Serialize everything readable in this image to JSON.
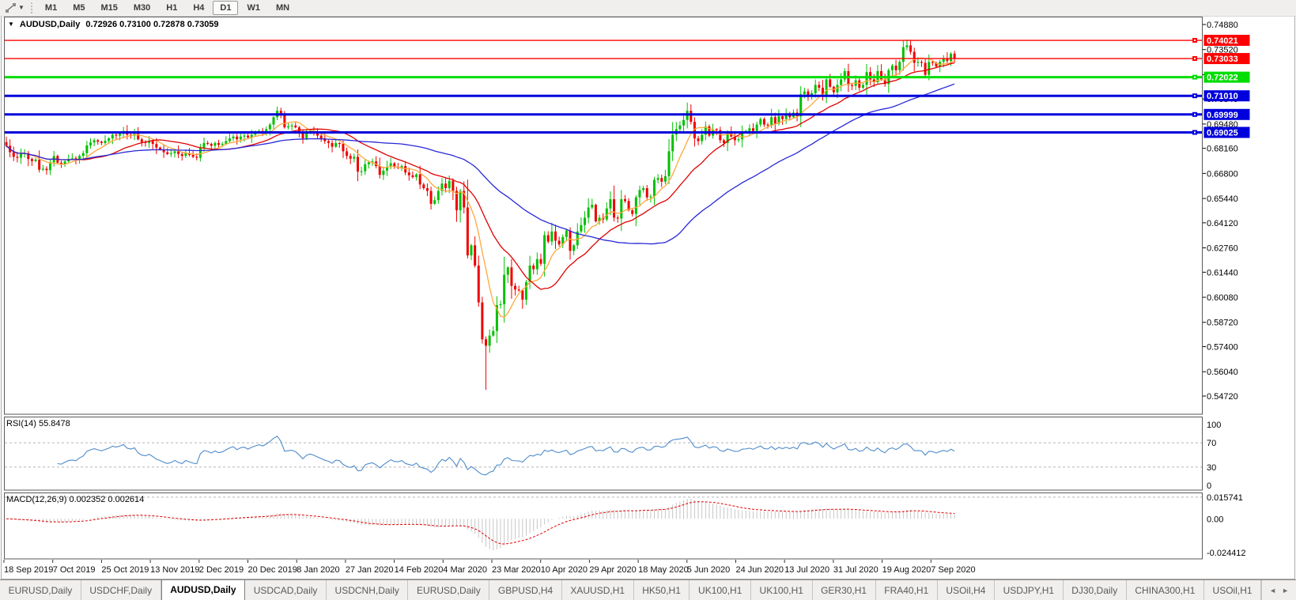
{
  "toolbar": {
    "timeframes": [
      {
        "label": "M1",
        "active": false
      },
      {
        "label": "M5",
        "active": false
      },
      {
        "label": "M15",
        "active": false
      },
      {
        "label": "M30",
        "active": false
      },
      {
        "label": "H1",
        "active": false
      },
      {
        "label": "H4",
        "active": false
      },
      {
        "label": "D1",
        "active": true
      },
      {
        "label": "W1",
        "active": false
      },
      {
        "label": "MN",
        "active": false
      }
    ]
  },
  "chart": {
    "title_symbol": "AUDUSD,Daily",
    "ohlc": "0.72926 0.73100 0.72878 0.73059"
  },
  "price_axis": {
    "ticks": [
      "0.74880",
      "0.73520",
      "0.72160",
      "0.70840",
      "0.69480",
      "0.68160",
      "0.66800",
      "0.65440",
      "0.64120",
      "0.62760",
      "0.61440",
      "0.60080",
      "0.58720",
      "0.57400",
      "0.56040",
      "0.54720"
    ]
  },
  "levels": [
    {
      "price": "0.74021",
      "color": "#FF0000",
      "width": 1.4
    },
    {
      "price": "0.73033",
      "color": "#FF0000",
      "width": 1.4
    },
    {
      "price": "0.72022",
      "color": "#00DD00",
      "width": 3
    },
    {
      "price": "0.71010",
      "color": "#0000DC",
      "width": 3
    },
    {
      "price": "0.69999",
      "color": "#0000DC",
      "width": 3
    },
    {
      "price": "0.69025",
      "color": "#0000DC",
      "width": 3
    }
  ],
  "rsi": {
    "label": "RSI(14) 55.8478",
    "axis_labels": [
      {
        "text": "100",
        "value": 100
      },
      {
        "text": "70",
        "value": 70
      },
      {
        "text": "30",
        "value": 30
      },
      {
        "text": "0",
        "value": 0
      }
    ],
    "dashed_levels": [
      70,
      30
    ],
    "line_color": "#4e8cc9"
  },
  "macd": {
    "label": "MACD(12,26,9) 0.002352 0.002614",
    "axis_labels": [
      {
        "text": "0.015741",
        "value": 0.015741,
        "dashed": true
      },
      {
        "text": "0.00",
        "value": 0,
        "dashed": false
      },
      {
        "text": "-0.024412",
        "value": -0.024412,
        "dashed": false
      }
    ],
    "histogram_color": "#c6c6c6",
    "signal_color": "#e00000"
  },
  "dates": {
    "labels": [
      "18 Sep 2019",
      "7 Oct 2019",
      "25 Oct 2019",
      "13 Nov 2019",
      "2 Dec 2019",
      "20 Dec 2019",
      "8 Jan 2020",
      "27 Jan 2020",
      "14 Feb 2020",
      "4 Mar 2020",
      "23 Mar 2020",
      "10 Apr 2020",
      "29 Apr 2020",
      "18 May 2020",
      "5 Jun 2020",
      "24 Jun 2020",
      "13 Jul 2020",
      "31 Jul 2020",
      "19 Aug 2020",
      "7 Sep 2020"
    ]
  },
  "tabs": {
    "items": [
      {
        "label": "EURUSD,Daily",
        "active": false
      },
      {
        "label": "USDCHF,Daily",
        "active": false
      },
      {
        "label": "AUDUSD,Daily",
        "active": true
      },
      {
        "label": "USDCAD,Daily",
        "active": false
      },
      {
        "label": "USDCNH,Daily",
        "active": false
      },
      {
        "label": "EURUSD,Daily",
        "active": false
      },
      {
        "label": "GBPUSD,H4",
        "active": false
      },
      {
        "label": "XAUUSD,H1",
        "active": false
      },
      {
        "label": "HK50,H1",
        "active": false
      },
      {
        "label": "UK100,H1",
        "active": false
      },
      {
        "label": "UK100,H1",
        "active": false
      },
      {
        "label": "GER30,H1",
        "active": false
      },
      {
        "label": "FRA40,H1",
        "active": false
      },
      {
        "label": "USOil,H4",
        "active": false
      },
      {
        "label": "USDJPY,H1",
        "active": false
      },
      {
        "label": "DJ30,Daily",
        "active": false
      },
      {
        "label": "CHINA300,H1",
        "active": false
      },
      {
        "label": "USOil,H1",
        "active": false
      }
    ],
    "scroll_left": "◄",
    "scroll_right": "►"
  },
  "colors": {
    "candle_up": "#00C000",
    "candle_down": "#F00000",
    "ma_fast": "#FFA83C",
    "ma_mid": "#E00000",
    "ma_slow": "#2828D8",
    "panel_border": "#5a5a5a",
    "dashed_grid": "#b4b4b4"
  },
  "chart_data": {
    "type": "candlestick",
    "symbol": "AUDUSD",
    "timeframe": "Daily",
    "title": "AUDUSD,Daily",
    "y_range": [
      0.5442,
      0.7518
    ],
    "open_equals_prev_close": true,
    "first_open": 0.685,
    "closes": [
      0.683,
      0.6795,
      0.677,
      0.6765,
      0.6785,
      0.679,
      0.6758,
      0.6747,
      0.6755,
      0.67,
      0.6705,
      0.6698,
      0.674,
      0.6775,
      0.6738,
      0.673,
      0.6745,
      0.6758,
      0.6762,
      0.6755,
      0.6775,
      0.679,
      0.6832,
      0.6848,
      0.686,
      0.6852,
      0.6845,
      0.6857,
      0.687,
      0.689,
      0.6885,
      0.6895,
      0.691,
      0.689,
      0.6885,
      0.6895,
      0.6865,
      0.685,
      0.6845,
      0.6855,
      0.684,
      0.682,
      0.681,
      0.6795,
      0.6785,
      0.679,
      0.68,
      0.6785,
      0.6775,
      0.679,
      0.678,
      0.677,
      0.6765,
      0.682,
      0.6845,
      0.684,
      0.683,
      0.6845,
      0.6835,
      0.684,
      0.6855,
      0.687,
      0.688,
      0.6865,
      0.688,
      0.6885,
      0.6875,
      0.689,
      0.69,
      0.691,
      0.6905,
      0.692,
      0.6945,
      0.6985,
      0.702,
      0.6995,
      0.693,
      0.6935,
      0.694,
      0.693,
      0.6905,
      0.687,
      0.69,
      0.691,
      0.69,
      0.6885,
      0.687,
      0.6855,
      0.6845,
      0.6825,
      0.6845,
      0.684,
      0.68,
      0.6775,
      0.676,
      0.677,
      0.669,
      0.6692,
      0.673,
      0.674,
      0.6745,
      0.672,
      0.6672,
      0.6695,
      0.6715,
      0.6735,
      0.6715,
      0.671,
      0.672,
      0.6685,
      0.667,
      0.666,
      0.6675,
      0.662,
      0.66,
      0.6585,
      0.6515,
      0.6535,
      0.6585,
      0.6625,
      0.66,
      0.664,
      0.6585,
      0.648,
      0.6585,
      0.6495,
      0.6235,
      0.629,
      0.618,
      0.598,
      0.578,
      0.5745,
      0.58,
      0.5825,
      0.5965,
      0.597,
      0.613,
      0.617,
      0.607,
      0.605,
      0.6045,
      0.5995,
      0.609,
      0.618,
      0.616,
      0.6215,
      0.619,
      0.6345,
      0.631,
      0.6365,
      0.6315,
      0.6295,
      0.6335,
      0.637,
      0.626,
      0.629,
      0.6365,
      0.64,
      0.644,
      0.6495,
      0.651,
      0.642,
      0.644,
      0.643,
      0.649,
      0.654,
      0.644,
      0.6435,
      0.654,
      0.653,
      0.648,
      0.646,
      0.655,
      0.659,
      0.66,
      0.655,
      0.6555,
      0.6645,
      0.6655,
      0.6635,
      0.6665,
      0.68,
      0.689,
      0.692,
      0.694,
      0.697,
      0.702,
      0.696,
      0.687,
      0.6855,
      0.689,
      0.6935,
      0.6885,
      0.692,
      0.6915,
      0.686,
      0.6845,
      0.69,
      0.688,
      0.686,
      0.6865,
      0.6905,
      0.691,
      0.6925,
      0.691,
      0.6945,
      0.6975,
      0.6945,
      0.694,
      0.6985,
      0.695,
      0.699,
      0.6975,
      0.7,
      0.6985,
      0.701,
      0.699,
      0.711,
      0.7125,
      0.7105,
      0.7115,
      0.716,
      0.7145,
      0.7105,
      0.719,
      0.715,
      0.712,
      0.716,
      0.719,
      0.7235,
      0.716,
      0.7155,
      0.7185,
      0.7145,
      0.716,
      0.723,
      0.719,
      0.7175,
      0.7235,
      0.719,
      0.7165,
      0.724,
      0.7265,
      0.724,
      0.7285,
      0.7365,
      0.7375,
      0.734,
      0.728,
      0.7285,
      0.728,
      0.7215,
      0.7285,
      0.728,
      0.726,
      0.7285,
      0.7305,
      0.729,
      0.733,
      0.73059
    ],
    "wick_overrides": {
      "131": {
        "low": 0.5506
      },
      "186": {
        "high": 0.7064
      },
      "246": {
        "high": 0.7406
      }
    },
    "moving_averages": [
      {
        "period": 8,
        "name": "MA fast",
        "color": "#FFA83C"
      },
      {
        "period": 21,
        "name": "MA mid",
        "color": "#E00000"
      },
      {
        "period": 55,
        "name": "MA slow",
        "color": "#2828D8"
      }
    ],
    "indicators": [
      "RSI(14)",
      "MACD(12,26,9)"
    ],
    "horizontal_levels": [
      0.74021,
      0.73033,
      0.72022,
      0.7101,
      0.69999,
      0.69025
    ]
  }
}
